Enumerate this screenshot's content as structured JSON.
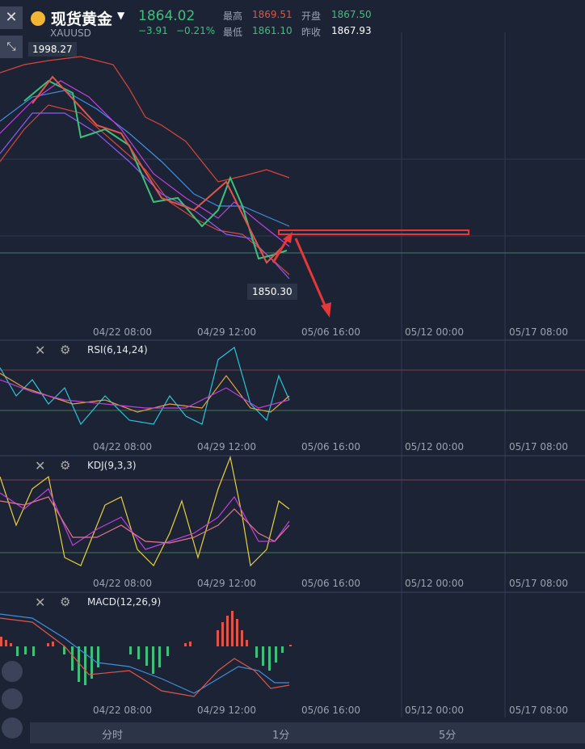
{
  "header": {
    "name": "现货黄金",
    "symbol": "XAUUSD",
    "price": "1864.02",
    "change": "−3.91",
    "change_pct": "−0.21%",
    "stats": [
      {
        "label": "最高",
        "value": "1869.51"
      },
      {
        "label": "开盘",
        "value": "1867.50"
      },
      {
        "label": "最低",
        "value": "1861.10"
      },
      {
        "label": "昨收",
        "value": "1867.93"
      }
    ]
  },
  "main": {
    "high_label": "1998.27",
    "low_label": "1850.30"
  },
  "x_labels": [
    "04/22 08:00",
    "04/29 12:00",
    "05/06 16:00",
    "05/12 00:00",
    "05/17 08:00"
  ],
  "indicators": [
    "RSI(6,14,24)",
    "KDJ(9,3,3)",
    "MACD(12,26,9)"
  ],
  "tabs": [
    "分时",
    "1分",
    "5分"
  ]
}
